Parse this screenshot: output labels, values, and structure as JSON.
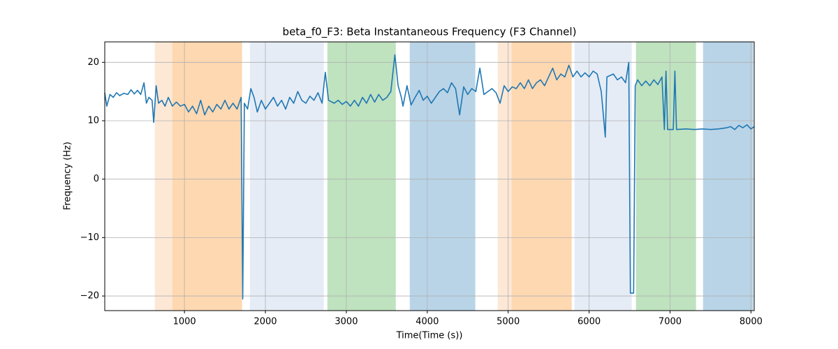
{
  "chart_data": {
    "type": "line",
    "title": "beta_f0_F3: Beta Instantaneous Frequency (F3 Channel)",
    "xlabel": "Time(Time (s))",
    "ylabel": "Frequency (Hz)",
    "color": "#1f77b4",
    "grid": true,
    "xlim": [
      15,
      8040
    ],
    "ylim": [
      -22.5,
      23.5
    ],
    "xticks": [
      1000,
      2000,
      3000,
      4000,
      5000,
      6000,
      7000,
      8000
    ],
    "yticks": [
      {
        "value": -20,
        "label": "−20"
      },
      {
        "value": -10,
        "label": "−10"
      },
      0,
      10,
      20
    ],
    "spans": [
      {
        "start": 638,
        "end": 854,
        "color": "#fde8d6"
      },
      {
        "start": 854,
        "end": 1708,
        "color": "#fed8b1"
      },
      {
        "start": 1812,
        "end": 2718,
        "color": "#e5ecf6"
      },
      {
        "start": 2770,
        "end": 3607,
        "color": "#bfe2bf"
      },
      {
        "start": 3788,
        "end": 4590,
        "color": "#b9d4e7"
      },
      {
        "start": 4875,
        "end": 5047,
        "color": "#fde8d6"
      },
      {
        "start": 5047,
        "end": 5781,
        "color": "#fed8b1"
      },
      {
        "start": 5824,
        "end": 6523,
        "color": "#e5ecf6"
      },
      {
        "start": 6583,
        "end": 7317,
        "color": "#bfe2bf"
      },
      {
        "start": 7412,
        "end": 8024,
        "color": "#b9d4e7"
      }
    ],
    "x": [
      15,
      40,
      80,
      120,
      160,
      200,
      250,
      300,
      340,
      380,
      420,
      460,
      500,
      530,
      560,
      600,
      620,
      650,
      680,
      720,
      760,
      800,
      850,
      900,
      950,
      1000,
      1050,
      1100,
      1150,
      1200,
      1250,
      1300,
      1350,
      1400,
      1450,
      1500,
      1550,
      1600,
      1650,
      1700,
      1720,
      1740,
      1780,
      1820,
      1860,
      1900,
      1950,
      2000,
      2050,
      2100,
      2150,
      2200,
      2250,
      2300,
      2350,
      2400,
      2450,
      2500,
      2550,
      2600,
      2650,
      2700,
      2740,
      2780,
      2850,
      2900,
      2950,
      3000,
      3050,
      3100,
      3150,
      3200,
      3250,
      3300,
      3350,
      3400,
      3450,
      3500,
      3550,
      3600,
      3640,
      3680,
      3700,
      3750,
      3800,
      3850,
      3900,
      3950,
      4000,
      4050,
      4100,
      4150,
      4200,
      4250,
      4300,
      4350,
      4400,
      4450,
      4500,
      4550,
      4600,
      4650,
      4700,
      4750,
      4800,
      4850,
      4900,
      4950,
      5000,
      5050,
      5100,
      5150,
      5200,
      5250,
      5300,
      5350,
      5400,
      5450,
      5500,
      5550,
      5600,
      5650,
      5700,
      5750,
      5800,
      5850,
      5900,
      5950,
      6000,
      6050,
      6100,
      6150,
      6200,
      6220,
      6300,
      6350,
      6400,
      6450,
      6490,
      6510,
      6550,
      6570,
      6600,
      6650,
      6700,
      6750,
      6800,
      6850,
      6900,
      6930,
      6950,
      6970,
      7000,
      7040,
      7060,
      7080,
      7200,
      7300,
      7400,
      7500,
      7600,
      7700,
      7750,
      7800,
      7850,
      7900,
      7950,
      8000,
      8040
    ],
    "values": [
      14.8,
      12.5,
      14.5,
      14.0,
      14.8,
      14.3,
      14.7,
      14.5,
      15.3,
      14.6,
      15.2,
      14.5,
      16.5,
      13.0,
      14.0,
      13.5,
      9.7,
      16.0,
      13.0,
      13.5,
      12.5,
      14.0,
      12.5,
      13.2,
      12.5,
      12.8,
      11.5,
      12.5,
      11.2,
      13.5,
      11.0,
      12.5,
      11.5,
      12.8,
      12.0,
      13.5,
      12.0,
      13.0,
      12.0,
      14.0,
      -20.5,
      13.0,
      12.0,
      15.5,
      14.0,
      11.5,
      13.5,
      12.0,
      13.0,
      14.0,
      12.5,
      13.5,
      12.0,
      14.0,
      13.0,
      15.0,
      13.5,
      13.0,
      14.2,
      13.5,
      14.8,
      13.0,
      18.3,
      13.5,
      13.0,
      13.5,
      12.8,
      13.3,
      12.5,
      13.5,
      12.5,
      14.0,
      13.0,
      14.5,
      13.2,
      14.5,
      13.5,
      14.0,
      15.0,
      21.3,
      16.0,
      14.0,
      12.5,
      16.0,
      12.7,
      14.0,
      15.2,
      13.5,
      14.2,
      13.0,
      14.0,
      15.0,
      15.5,
      14.8,
      16.5,
      15.5,
      11.0,
      15.8,
      14.5,
      15.5,
      15.0,
      19.0,
      14.5,
      15.0,
      15.5,
      14.8,
      13.0,
      16.0,
      15.0,
      15.8,
      15.5,
      16.5,
      15.5,
      17.0,
      15.5,
      16.5,
      17.0,
      16.0,
      17.5,
      19.0,
      17.0,
      18.0,
      17.5,
      19.5,
      17.5,
      18.5,
      17.5,
      18.2,
      17.5,
      18.5,
      18.0,
      15.0,
      7.2,
      17.5,
      18.0,
      17.0,
      17.5,
      16.5,
      20.0,
      -19.5,
      -19.5,
      16.0,
      17.0,
      16.0,
      16.8,
      16.0,
      17.0,
      16.2,
      17.5,
      8.5,
      18.5,
      8.5,
      8.5,
      8.5,
      18.5,
      8.5,
      8.6,
      8.5,
      8.6,
      8.5,
      8.6,
      8.8,
      9.0,
      8.5,
      9.2,
      8.8,
      9.3,
      8.6,
      9.0
    ]
  }
}
